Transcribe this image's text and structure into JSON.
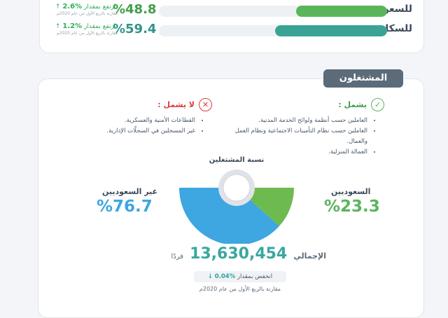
{
  "top": {
    "rows": [
      {
        "label": "للسعوديين",
        "pct": "%48.8",
        "fill": 0.4,
        "color": "#5ab55a",
        "pct_color": "#3f9e4a",
        "change": "ارتفع بمقدار",
        "change_val": "%2.6",
        "note": "مقارنة بالربع الأول من عام 2020م"
      },
      {
        "label": "للسكان",
        "pct": "%59.4",
        "fill": 0.49,
        "color": "#3aa396",
        "pct_color": "#2f9489",
        "change": "ارتفع بمقدار",
        "change_val": "%1.2",
        "note": "مقارنة بالربع الأول من عام 2020م"
      }
    ]
  },
  "employed": {
    "title": "المشتغلون",
    "includes": {
      "header": "يشمل :",
      "items": [
        "العاملين حسب أنظمة ولوائح الخدمة المدنية.",
        "العاملين حسب نظام التأمينات الاجتماعية ونظام العمل والعمال.",
        "العمالة المنزلية."
      ]
    },
    "excludes": {
      "header": "لا يشمل :",
      "items": [
        "القطاعات الأمنية والعسكرية.",
        "غير المسجلين في السجلّات الإدارية."
      ]
    },
    "chart_title": "نسبة المشتغلين",
    "saudi": {
      "label": "السعوديين",
      "pct": "%23.3"
    },
    "non_saudi": {
      "label": "غير السعوديين",
      "pct": "%76.7"
    },
    "total_label": "الإجمالي",
    "total_value": "13,630,454",
    "total_unit": "فردًا",
    "decrease_text": "انخفض بمقدار",
    "decrease_val": "%0.04",
    "decrease_note": "مقارنة بالربع الأول من عام 2020م"
  },
  "chart_data": {
    "type": "pie",
    "categories": [
      "السعوديين",
      "غير السعوديين"
    ],
    "values": [
      23.3,
      76.7
    ],
    "colors": [
      "#6dbb4f",
      "#3ea6e0"
    ]
  },
  "icons": {
    "check": "check-icon",
    "cross": "close-icon",
    "arrow_up": "arrow-up-icon",
    "arrow_down": "arrow-down-icon"
  }
}
